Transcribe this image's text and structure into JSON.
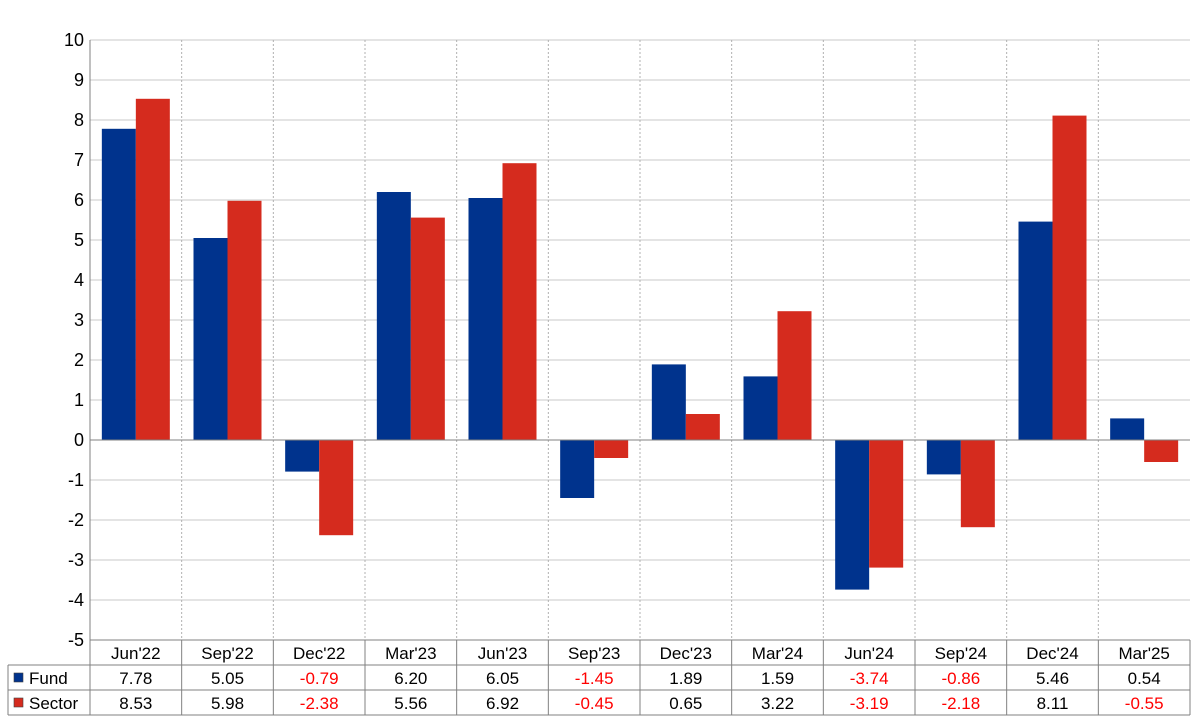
{
  "chart_data": {
    "type": "bar",
    "categories": [
      "Jun'22",
      "Sep'22",
      "Dec'22",
      "Mar'23",
      "Jun'23",
      "Sep'23",
      "Dec'23",
      "Mar'24",
      "Jun'24",
      "Sep'24",
      "Dec'24",
      "Mar'25"
    ],
    "series": [
      {
        "name": "Fund",
        "color": "#00338d",
        "values": [
          7.78,
          5.05,
          -0.79,
          6.2,
          6.05,
          -1.45,
          1.89,
          1.59,
          -3.74,
          -0.86,
          5.46,
          0.54
        ],
        "labels": [
          "7.78",
          "5.05",
          "-0.79",
          "6.20",
          "6.05",
          "-1.45",
          "1.89",
          "1.59",
          "-3.74",
          "-0.86",
          "5.46",
          "0.54"
        ]
      },
      {
        "name": "Sector",
        "color": "#d52b1e",
        "values": [
          8.53,
          5.98,
          -2.38,
          5.56,
          6.92,
          -0.45,
          0.65,
          3.22,
          -3.19,
          -2.18,
          8.11,
          -0.55
        ],
        "labels": [
          "8.53",
          "5.98",
          "-2.38",
          "5.56",
          "6.92",
          "-0.45",
          "0.65",
          "3.22",
          "-3.19",
          "-2.18",
          "8.11",
          "-0.55"
        ]
      }
    ],
    "ylim": [
      -5,
      10
    ],
    "yticks": [
      "10",
      "9",
      "8",
      "7",
      "6",
      "5",
      "4",
      "3",
      "2",
      "1",
      "0",
      "-1",
      "-2",
      "-3",
      "-4",
      "-5"
    ],
    "grid": true,
    "legend": "data table below chart",
    "negative_value_color": "#ff0000"
  }
}
